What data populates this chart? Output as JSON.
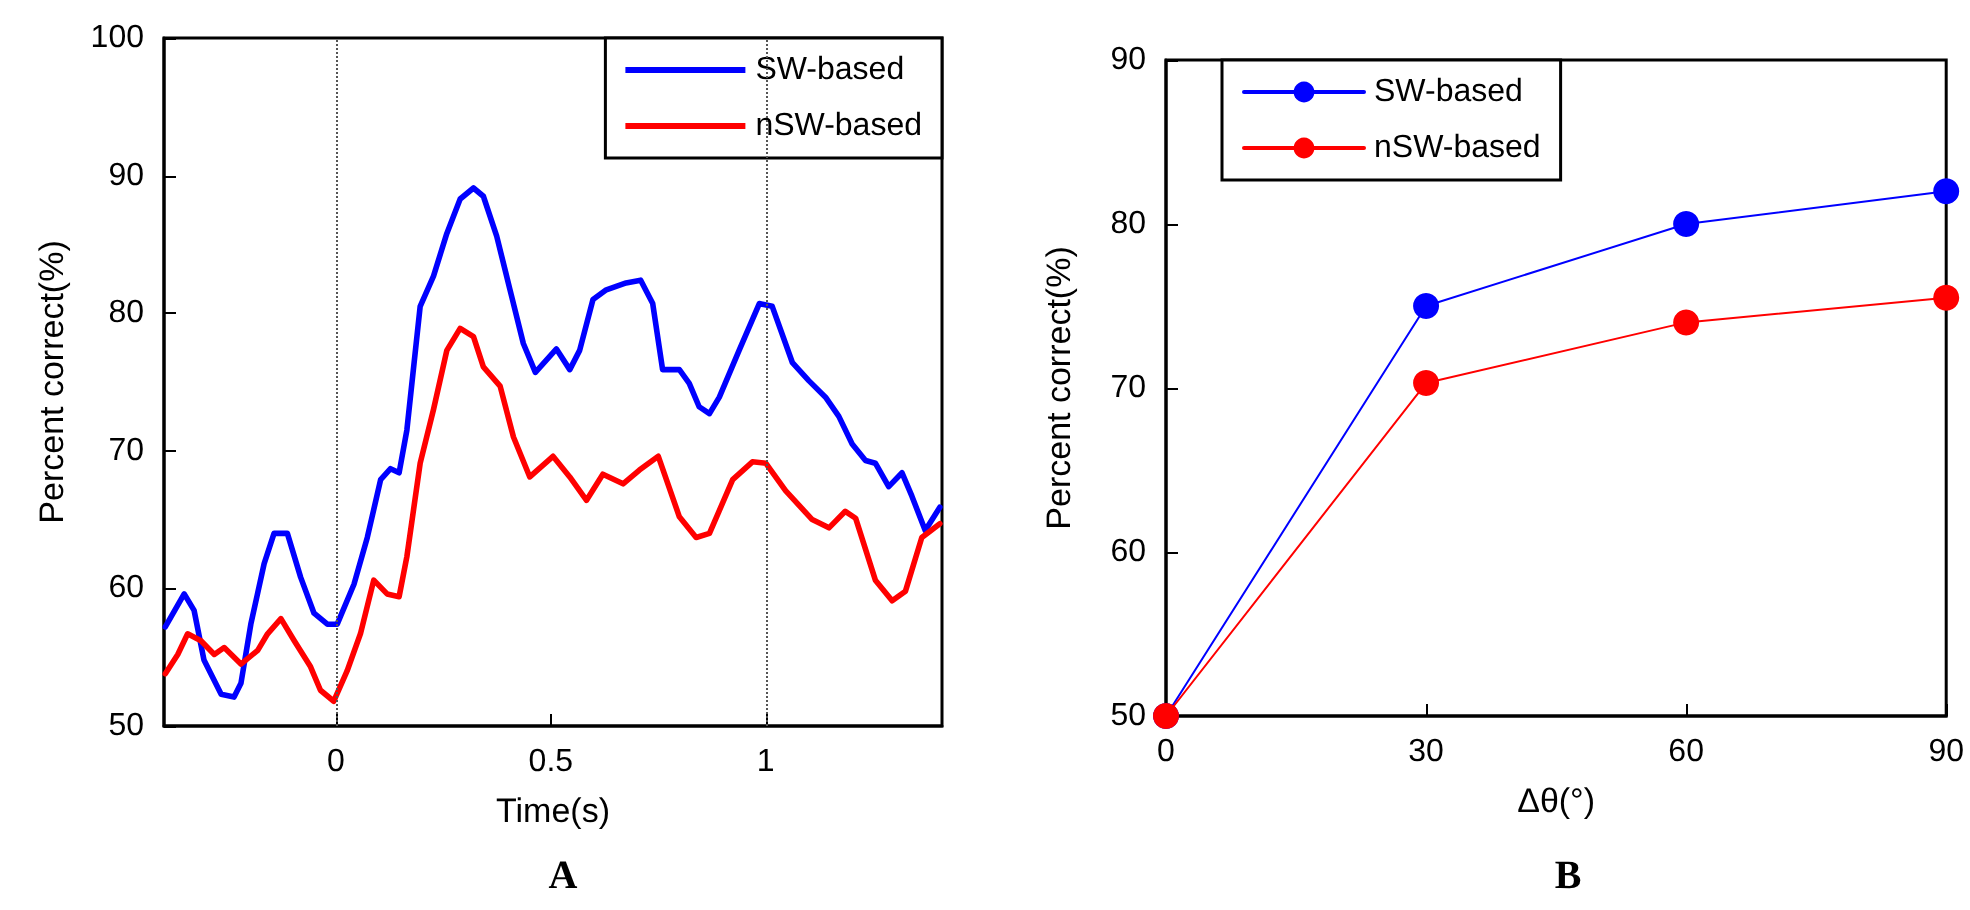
{
  "chart_data": [
    {
      "type": "line",
      "xlabel": "Time(s)",
      "ylabel": "Percent correct(%)",
      "annotations": [
        "A"
      ],
      "xlim": [
        -0.4,
        1.41
      ],
      "xticks": [
        0,
        0.5,
        1
      ],
      "ylim": [
        50,
        100
      ],
      "yticks": [
        50,
        60,
        70,
        80,
        90,
        100
      ],
      "grid": false,
      "legend": "top right",
      "marker": "none",
      "line_style": "solid",
      "ref_lines": [
        {
          "axis": "x",
          "value": 0,
          "color": "#555555",
          "line_style": "dotted"
        },
        {
          "axis": "x",
          "value": 1,
          "color": "#555555",
          "line_style": "dotted"
        }
      ],
      "series": [
        {
          "name": "SW-based",
          "color": "#0000ff",
          "x": [
            -0.397,
            -0.353,
            -0.33,
            -0.307,
            -0.267,
            -0.237,
            -0.221,
            -0.198,
            -0.167,
            -0.144,
            -0.113,
            -0.082,
            -0.051,
            -0.02,
            0.003,
            0.042,
            0.073,
            0.104,
            0.127,
            0.147,
            0.165,
            0.196,
            0.227,
            0.258,
            0.289,
            0.32,
            0.343,
            0.374,
            0.405,
            0.436,
            0.464,
            0.513,
            0.544,
            0.567,
            0.598,
            0.629,
            0.675,
            0.709,
            0.737,
            0.76,
            0.799,
            0.822,
            0.845,
            0.869,
            0.892,
            0.938,
            0.985,
            1.015,
            1.062,
            1.1,
            1.139,
            1.17,
            1.201,
            1.232,
            1.255,
            1.286,
            1.317,
            1.34,
            1.371,
            1.405
          ],
          "values": [
            57.2,
            59.6,
            58.4,
            54.8,
            52.3,
            52.1,
            53.1,
            57.4,
            61.8,
            64,
            64,
            60.8,
            58.2,
            57.4,
            57.4,
            60.3,
            63.7,
            67.9,
            68.7,
            68.4,
            71.5,
            80.5,
            82.7,
            85.8,
            88.3,
            89.1,
            88.5,
            85.6,
            81.7,
            77.8,
            75.7,
            77.4,
            75.9,
            77.3,
            81,
            81.7,
            82.2,
            82.4,
            80.7,
            75.9,
            75.9,
            74.9,
            73.2,
            72.7,
            73.9,
            77.3,
            80.7,
            80.5,
            76.4,
            75.1,
            73.9,
            72.5,
            70.5,
            69.3,
            69.1,
            67.4,
            68.4,
            66.7,
            64.2,
            65.9
          ]
        },
        {
          "name": "nSW-based",
          "color": "#ff0000",
          "x": [
            -0.397,
            -0.368,
            -0.345,
            -0.314,
            -0.283,
            -0.26,
            -0.221,
            -0.182,
            -0.159,
            -0.128,
            -0.097,
            -0.059,
            -0.036,
            -0.005,
            0.026,
            0.057,
            0.088,
            0.119,
            0.147,
            0.165,
            0.196,
            0.227,
            0.258,
            0.289,
            0.32,
            0.343,
            0.382,
            0.413,
            0.451,
            0.505,
            0.544,
            0.583,
            0.621,
            0.668,
            0.706,
            0.75,
            0.799,
            0.838,
            0.869,
            0.923,
            0.969,
            1,
            1.046,
            1.108,
            1.147,
            1.185,
            1.209,
            1.255,
            1.294,
            1.325,
            1.363,
            1.405
          ],
          "values": [
            53.8,
            55.2,
            56.7,
            56.2,
            55.2,
            55.7,
            54.5,
            55.5,
            56.7,
            57.8,
            56.2,
            54.3,
            52.6,
            51.8,
            54,
            56.7,
            60.6,
            59.6,
            59.4,
            62.3,
            69.1,
            73,
            77.3,
            78.9,
            78.3,
            76.1,
            74.7,
            71,
            68.1,
            69.6,
            68.1,
            66.4,
            68.3,
            67.6,
            68.6,
            69.6,
            65.2,
            63.7,
            64,
            67.9,
            69.2,
            69.1,
            67.1,
            65,
            64.4,
            65.6,
            65.1,
            60.6,
            59.1,
            59.8,
            63.7,
            64.7
          ]
        }
      ]
    },
    {
      "type": "line",
      "xlabel": "Δθ(°)",
      "ylabel": "Percent correct(%)",
      "annotations": [
        "B"
      ],
      "x": [
        0,
        30,
        60,
        90
      ],
      "xlim": [
        0,
        90
      ],
      "xticks": [
        0,
        30,
        60,
        90
      ],
      "ylim": [
        50,
        90
      ],
      "yticks": [
        50,
        60,
        70,
        80,
        90
      ],
      "grid": false,
      "legend": "top left",
      "marker": "circle",
      "line_style": "solid",
      "series": [
        {
          "name": "SW-based",
          "color": "#0000ff",
          "values": [
            50,
            75,
            80,
            82
          ]
        },
        {
          "name": "nSW-based",
          "color": "#ff0000",
          "values": [
            50,
            70.3,
            74,
            75.5
          ]
        }
      ]
    }
  ]
}
